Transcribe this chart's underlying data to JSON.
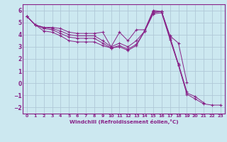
{
  "xlabel": "Windchill (Refroidissement éolien,°C)",
  "xlim": [
    -0.5,
    23.5
  ],
  "ylim": [
    -2.5,
    6.5
  ],
  "yticks": [
    -2,
    -1,
    0,
    1,
    2,
    3,
    4,
    5,
    6
  ],
  "xticks": [
    0,
    1,
    2,
    3,
    4,
    5,
    6,
    7,
    8,
    9,
    10,
    11,
    12,
    13,
    14,
    15,
    16,
    17,
    18,
    19,
    20,
    21,
    22,
    23
  ],
  "bg_color": "#cce8f0",
  "line_color": "#882288",
  "grid_color": "#b0c8d8",
  "lines": [
    [
      5.5,
      4.8,
      4.6,
      4.6,
      4.5,
      4.2,
      4.1,
      4.1,
      4.1,
      4.2,
      3.0,
      4.2,
      3.5,
      4.4,
      4.4,
      6.0,
      5.9,
      3.9,
      3.3,
      0.1,
      null,
      null,
      null,
      null
    ],
    [
      5.5,
      4.8,
      4.6,
      4.5,
      4.3,
      4.0,
      3.9,
      3.9,
      3.9,
      3.5,
      3.0,
      3.3,
      3.0,
      3.5,
      4.3,
      5.9,
      5.9,
      3.8,
      1.6,
      -0.7,
      null,
      null,
      null,
      null
    ],
    [
      5.5,
      4.8,
      4.5,
      4.4,
      4.1,
      3.8,
      3.7,
      3.7,
      3.7,
      3.3,
      2.9,
      3.1,
      2.8,
      3.2,
      4.3,
      5.8,
      5.9,
      3.7,
      1.5,
      -0.8,
      -1.1,
      -1.6,
      null,
      null
    ],
    [
      5.5,
      4.8,
      4.3,
      4.2,
      3.9,
      3.5,
      3.4,
      3.4,
      3.4,
      3.1,
      2.9,
      3.0,
      2.7,
      3.1,
      4.3,
      5.7,
      5.8,
      3.6,
      1.5,
      -0.9,
      -1.3,
      -1.7,
      -1.8,
      -1.8
    ]
  ]
}
